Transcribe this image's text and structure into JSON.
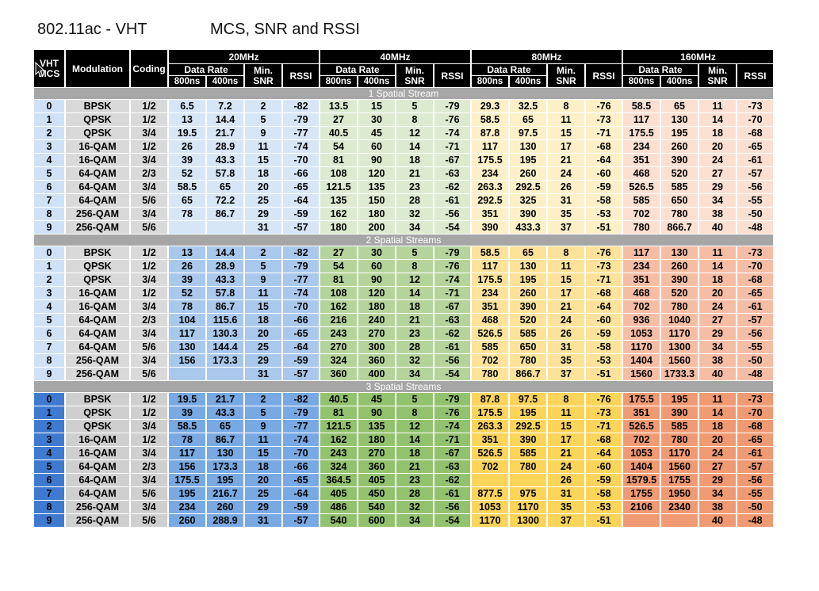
{
  "title": {
    "left": "802.11ac - VHT",
    "right": "MCS, SNR and RSSI"
  },
  "headers": {
    "mcs": [
      "VHT",
      "MCS"
    ],
    "modulation": "Modulation",
    "coding": "Coding",
    "bandwidths": [
      "20MHz",
      "40MHz",
      "80MHz",
      "160MHz"
    ],
    "data_rate": "Data Rate",
    "min_snr": [
      "Min.",
      "SNR"
    ],
    "rssi": "RSSI",
    "gi": [
      "800ns",
      "400ns"
    ]
  },
  "sections": [
    {
      "label": "1 Spatial Stream",
      "rows": [
        [
          "0",
          "BPSK",
          "1/2",
          "6.5",
          "7.2",
          "2",
          "-82",
          "13.5",
          "15",
          "5",
          "-79",
          "29.3",
          "32.5",
          "8",
          "-76",
          "58.5",
          "65",
          "11",
          "-73"
        ],
        [
          "1",
          "QPSK",
          "1/2",
          "13",
          "14.4",
          "5",
          "-79",
          "27",
          "30",
          "8",
          "-76",
          "58.5",
          "65",
          "11",
          "-73",
          "117",
          "130",
          "14",
          "-70"
        ],
        [
          "2",
          "QPSK",
          "3/4",
          "19.5",
          "21.7",
          "9",
          "-77",
          "40.5",
          "45",
          "12",
          "-74",
          "87.8",
          "97.5",
          "15",
          "-71",
          "175.5",
          "195",
          "18",
          "-68"
        ],
        [
          "3",
          "16-QAM",
          "1/2",
          "26",
          "28.9",
          "11",
          "-74",
          "54",
          "60",
          "14",
          "-71",
          "117",
          "130",
          "17",
          "-68",
          "234",
          "260",
          "20",
          "-65"
        ],
        [
          "4",
          "16-QAM",
          "3/4",
          "39",
          "43.3",
          "15",
          "-70",
          "81",
          "90",
          "18",
          "-67",
          "175.5",
          "195",
          "21",
          "-64",
          "351",
          "390",
          "24",
          "-61"
        ],
        [
          "5",
          "64-QAM",
          "2/3",
          "52",
          "57.8",
          "18",
          "-66",
          "108",
          "120",
          "21",
          "-63",
          "234",
          "260",
          "24",
          "-60",
          "468",
          "520",
          "27",
          "-57"
        ],
        [
          "6",
          "64-QAM",
          "3/4",
          "58.5",
          "65",
          "20",
          "-65",
          "121.5",
          "135",
          "23",
          "-62",
          "263.3",
          "292.5",
          "26",
          "-59",
          "526.5",
          "585",
          "29",
          "-56"
        ],
        [
          "7",
          "64-QAM",
          "5/6",
          "65",
          "72.2",
          "25",
          "-64",
          "135",
          "150",
          "28",
          "-61",
          "292.5",
          "325",
          "31",
          "-58",
          "585",
          "650",
          "34",
          "-55"
        ],
        [
          "8",
          "256-QAM",
          "3/4",
          "78",
          "86.7",
          "29",
          "-59",
          "162",
          "180",
          "32",
          "-56",
          "351",
          "390",
          "35",
          "-53",
          "702",
          "780",
          "38",
          "-50"
        ],
        [
          "9",
          "256-QAM",
          "5/6",
          "",
          "",
          "31",
          "-57",
          "180",
          "200",
          "34",
          "-54",
          "390",
          "433.3",
          "37",
          "-51",
          "780",
          "866.7",
          "40",
          "-48"
        ]
      ]
    },
    {
      "label": "2 Spatial Streams",
      "rows": [
        [
          "0",
          "BPSK",
          "1/2",
          "13",
          "14.4",
          "2",
          "-82",
          "27",
          "30",
          "5",
          "-79",
          "58.5",
          "65",
          "8",
          "-76",
          "117",
          "130",
          "11",
          "-73"
        ],
        [
          "1",
          "QPSK",
          "1/2",
          "26",
          "28.9",
          "5",
          "-79",
          "54",
          "60",
          "8",
          "-76",
          "117",
          "130",
          "11",
          "-73",
          "234",
          "260",
          "14",
          "-70"
        ],
        [
          "2",
          "QPSK",
          "3/4",
          "39",
          "43.3",
          "9",
          "-77",
          "81",
          "90",
          "12",
          "-74",
          "175.5",
          "195",
          "15",
          "-71",
          "351",
          "390",
          "18",
          "-68"
        ],
        [
          "3",
          "16-QAM",
          "1/2",
          "52",
          "57.8",
          "11",
          "-74",
          "108",
          "120",
          "14",
          "-71",
          "234",
          "260",
          "17",
          "-68",
          "468",
          "520",
          "20",
          "-65"
        ],
        [
          "4",
          "16-QAM",
          "3/4",
          "78",
          "86.7",
          "15",
          "-70",
          "162",
          "180",
          "18",
          "-67",
          "351",
          "390",
          "21",
          "-64",
          "702",
          "780",
          "24",
          "-61"
        ],
        [
          "5",
          "64-QAM",
          "2/3",
          "104",
          "115.6",
          "18",
          "-66",
          "216",
          "240",
          "21",
          "-63",
          "468",
          "520",
          "24",
          "-60",
          "936",
          "1040",
          "27",
          "-57"
        ],
        [
          "6",
          "64-QAM",
          "3/4",
          "117",
          "130.3",
          "20",
          "-65",
          "243",
          "270",
          "23",
          "-62",
          "526.5",
          "585",
          "26",
          "-59",
          "1053",
          "1170",
          "29",
          "-56"
        ],
        [
          "7",
          "64-QAM",
          "5/6",
          "130",
          "144.4",
          "25",
          "-64",
          "270",
          "300",
          "28",
          "-61",
          "585",
          "650",
          "31",
          "-58",
          "1170",
          "1300",
          "34",
          "-55"
        ],
        [
          "8",
          "256-QAM",
          "3/4",
          "156",
          "173.3",
          "29",
          "-59",
          "324",
          "360",
          "32",
          "-56",
          "702",
          "780",
          "35",
          "-53",
          "1404",
          "1560",
          "38",
          "-50"
        ],
        [
          "9",
          "256-QAM",
          "5/6",
          "",
          "",
          "31",
          "-57",
          "360",
          "400",
          "34",
          "-54",
          "780",
          "866.7",
          "37",
          "-51",
          "1560",
          "1733.3",
          "40",
          "-48"
        ]
      ]
    },
    {
      "label": "3 Spatial Streams",
      "rows": [
        [
          "0",
          "BPSK",
          "1/2",
          "19.5",
          "21.7",
          "2",
          "-82",
          "40.5",
          "45",
          "5",
          "-79",
          "87.8",
          "97.5",
          "8",
          "-76",
          "175.5",
          "195",
          "11",
          "-73"
        ],
        [
          "1",
          "QPSK",
          "1/2",
          "39",
          "43.3",
          "5",
          "-79",
          "81",
          "90",
          "8",
          "-76",
          "175.5",
          "195",
          "11",
          "-73",
          "351",
          "390",
          "14",
          "-70"
        ],
        [
          "2",
          "QPSK",
          "3/4",
          "58.5",
          "65",
          "9",
          "-77",
          "121.5",
          "135",
          "12",
          "-74",
          "263.3",
          "292.5",
          "15",
          "-71",
          "526.5",
          "585",
          "18",
          "-68"
        ],
        [
          "3",
          "16-QAM",
          "1/2",
          "78",
          "86.7",
          "11",
          "-74",
          "162",
          "180",
          "14",
          "-71",
          "351",
          "390",
          "17",
          "-68",
          "702",
          "780",
          "20",
          "-65"
        ],
        [
          "4",
          "16-QAM",
          "3/4",
          "117",
          "130",
          "15",
          "-70",
          "243",
          "270",
          "18",
          "-67",
          "526.5",
          "585",
          "21",
          "-64",
          "1053",
          "1170",
          "24",
          "-61"
        ],
        [
          "5",
          "64-QAM",
          "2/3",
          "156",
          "173.3",
          "18",
          "-66",
          "324",
          "360",
          "21",
          "-63",
          "702",
          "780",
          "24",
          "-60",
          "1404",
          "1560",
          "27",
          "-57"
        ],
        [
          "6",
          "64-QAM",
          "3/4",
          "175.5",
          "195",
          "20",
          "-65",
          "364.5",
          "405",
          "23",
          "-62",
          "",
          "",
          "26",
          "-59",
          "1579.5",
          "1755",
          "29",
          "-56"
        ],
        [
          "7",
          "64-QAM",
          "5/6",
          "195",
          "216.7",
          "25",
          "-64",
          "405",
          "450",
          "28",
          "-61",
          "877.5",
          "975",
          "31",
          "-58",
          "1755",
          "1950",
          "34",
          "-55"
        ],
        [
          "8",
          "256-QAM",
          "3/4",
          "234",
          "260",
          "29",
          "-59",
          "486",
          "540",
          "32",
          "-56",
          "1053",
          "1170",
          "35",
          "-53",
          "2106",
          "2340",
          "38",
          "-50"
        ],
        [
          "9",
          "256-QAM",
          "5/6",
          "260",
          "288.9",
          "31",
          "-57",
          "540",
          "600",
          "34",
          "-54",
          "1170",
          "1300",
          "37",
          "-51",
          "",
          "",
          "40",
          "-48"
        ]
      ]
    }
  ]
}
